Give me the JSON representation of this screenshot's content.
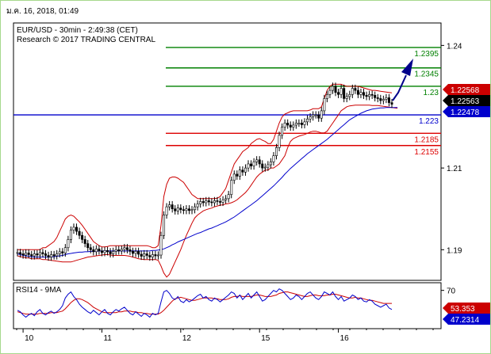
{
  "header": {
    "timestamp": "ม.ค. 16, 2018, 01:49",
    "title": "EUR/USD - 30min - 2:49:38 (CET)",
    "subtitle": "Research © 2017 TRADING CENTRAL"
  },
  "rsi_panel": {
    "title": "RSI14 - 9MA"
  },
  "colors": {
    "frame_outer": "#a6d88c",
    "candles": "#000000",
    "bollinger": "#cc0000",
    "moving_average": "#0000cc",
    "resistance": "#008000",
    "support": "#dd0000",
    "pivot": "#0000cc",
    "arrow": "#00008b"
  },
  "chart_data": [
    {
      "type": "candlestick",
      "instrument": "EUR/USD",
      "timeframe": "30min",
      "x_ticks": [
        "10",
        "11",
        "12",
        "15",
        "16"
      ],
      "y_ticks": [
        1.19,
        1.21,
        1.24
      ],
      "ylim": [
        1.1825,
        1.2455
      ],
      "price_tags": [
        {
          "value": 1.22568,
          "label": "1.22568",
          "color": "#cc0000"
        },
        {
          "value": 1.22563,
          "label": "1.22563",
          "color": "#000000"
        },
        {
          "value": 1.22478,
          "label": "1.22478",
          "color": "#0000cc"
        }
      ],
      "levels": [
        {
          "value": 1.2395,
          "label": "1.2395",
          "kind": "resistance"
        },
        {
          "value": 1.2345,
          "label": "1.2345",
          "kind": "resistance"
        },
        {
          "value": 1.23,
          "label": "1.23",
          "kind": "resistance"
        },
        {
          "value": 1.223,
          "label": "1.223",
          "kind": "pivot"
        },
        {
          "value": 1.2185,
          "label": "1.2185",
          "kind": "support"
        },
        {
          "value": 1.2155,
          "label": "1.2155",
          "kind": "support"
        }
      ],
      "close": [
        1.1893,
        1.189,
        1.1887,
        1.1892,
        1.1888,
        1.1885,
        1.189,
        1.1887,
        1.1893,
        1.189,
        1.1886,
        1.1882,
        1.1888,
        1.1885,
        1.189,
        1.1895,
        1.1892,
        1.1905,
        1.1925,
        1.1948,
        1.1955,
        1.1945,
        1.1935,
        1.1925,
        1.1915,
        1.1905,
        1.19,
        1.1895,
        1.1902,
        1.1897,
        1.1893,
        1.1898,
        1.1895,
        1.189,
        1.1896,
        1.19,
        1.1897,
        1.1901,
        1.1905,
        1.19,
        1.1896,
        1.1891,
        1.1896,
        1.1889,
        1.1884,
        1.189,
        1.1886,
        1.1882,
        1.1888,
        1.1885,
        1.1887,
        1.1935,
        1.1985,
        1.2005,
        1.201,
        1.2,
        1.1995,
        1.2002,
        1.1998,
        1.1996,
        1.2,
        1.1996,
        1.1998,
        1.2005,
        1.2012,
        1.2018,
        1.2015,
        1.202,
        1.2017,
        1.2015,
        1.202,
        1.2018,
        1.2016,
        1.2022,
        1.2025,
        1.2035,
        1.207,
        1.2085,
        1.208,
        1.2095,
        1.209,
        1.21,
        1.211,
        1.2105,
        1.2115,
        1.212,
        1.211,
        1.21,
        1.2102,
        1.2108,
        1.2115,
        1.213,
        1.215,
        1.218,
        1.22,
        1.221,
        1.2205,
        1.22,
        1.2205,
        1.221,
        1.221,
        1.2206,
        1.2213,
        1.222,
        1.2225,
        1.223,
        1.223,
        1.2222,
        1.224,
        1.227,
        1.228,
        1.229,
        1.23,
        1.2285,
        1.228,
        1.2295,
        1.227,
        1.2275,
        1.228,
        1.2295,
        1.229,
        1.228,
        1.2285,
        1.2278,
        1.2275,
        1.228,
        1.2278,
        1.2272,
        1.227,
        1.2265,
        1.2268,
        1.2272,
        1.226,
        1.2256
      ],
      "bollinger_upper": [
        1.19,
        1.19,
        1.19,
        1.19,
        1.19,
        1.19,
        1.19,
        1.19,
        1.19,
        1.1905,
        1.1905,
        1.191,
        1.1915,
        1.192,
        1.193,
        1.1945,
        1.196,
        1.1975,
        1.1982,
        1.1985,
        1.1982,
        1.1975,
        1.1968,
        1.196,
        1.195,
        1.194,
        1.193,
        1.192,
        1.1915,
        1.191,
        1.1907,
        1.1907,
        1.1908,
        1.191,
        1.191,
        1.191,
        1.191,
        1.191,
        1.191,
        1.191,
        1.191,
        1.191,
        1.191,
        1.191,
        1.191,
        1.191,
        1.191,
        1.1908,
        1.1905,
        1.1905,
        1.191,
        1.196,
        1.203,
        1.206,
        1.2075,
        1.2078,
        1.2078,
        1.2075,
        1.207,
        1.2065,
        1.2055,
        1.2045,
        1.2035,
        1.203,
        1.2025,
        1.2025,
        1.2025,
        1.2025,
        1.2025,
        1.2025,
        1.2025,
        1.2026,
        1.203,
        1.204,
        1.205,
        1.207,
        1.209,
        1.211,
        1.212,
        1.213,
        1.214,
        1.2145,
        1.215,
        1.216,
        1.2165,
        1.217,
        1.2172,
        1.2168,
        1.2165,
        1.216,
        1.216,
        1.217,
        1.219,
        1.221,
        1.2225,
        1.2232,
        1.2235,
        1.2238,
        1.224,
        1.224,
        1.224,
        1.224,
        1.224,
        1.224,
        1.2242,
        1.2245,
        1.2245,
        1.2245,
        1.225,
        1.227,
        1.229,
        1.23,
        1.2305,
        1.2305,
        1.2305,
        1.2305,
        1.2302,
        1.23,
        1.23,
        1.23,
        1.23,
        1.23,
        1.2298,
        1.2296,
        1.2294,
        1.2292,
        1.229,
        1.229,
        1.2289,
        1.2288,
        1.2287,
        1.2286,
        1.2285,
        1.2284
      ],
      "bollinger_lower": [
        1.1885,
        1.1883,
        1.1882,
        1.188,
        1.188,
        1.1878,
        1.1878,
        1.1878,
        1.1878,
        1.1876,
        1.1876,
        1.1875,
        1.1874,
        1.1873,
        1.1872,
        1.1871,
        1.187,
        1.187,
        1.187,
        1.187,
        1.1872,
        1.1874,
        1.1876,
        1.1878,
        1.188,
        1.1882,
        1.1883,
        1.1884,
        1.1885,
        1.1886,
        1.1887,
        1.1888,
        1.1888,
        1.1887,
        1.1886,
        1.1886,
        1.1886,
        1.1886,
        1.1886,
        1.1885,
        1.1884,
        1.1882,
        1.188,
        1.1878,
        1.1877,
        1.1876,
        1.1876,
        1.1876,
        1.1876,
        1.1876,
        1.1874,
        1.186,
        1.1843,
        1.1833,
        1.184,
        1.1855,
        1.187,
        1.1885,
        1.19,
        1.1918,
        1.1935,
        1.195,
        1.1965,
        1.1978,
        1.1985,
        1.199,
        1.1995,
        1.1998,
        1.2,
        1.2002,
        1.2005,
        1.2007,
        1.2009,
        1.201,
        1.2012,
        1.2013,
        1.2015,
        1.2018,
        1.2022,
        1.2028,
        1.2034,
        1.204,
        1.2048,
        1.2058,
        1.2068,
        1.2078,
        1.2085,
        1.209,
        1.2095,
        1.2095,
        1.21,
        1.21,
        1.2105,
        1.211,
        1.212,
        1.213,
        1.215,
        1.2165,
        1.2172,
        1.2175,
        1.2178,
        1.218,
        1.2182,
        1.2185,
        1.2188,
        1.219,
        1.219,
        1.2188,
        1.2186,
        1.2186,
        1.219,
        1.22,
        1.221,
        1.222,
        1.223,
        1.224,
        1.2245,
        1.225,
        1.2252,
        1.2253,
        1.2254,
        1.2254,
        1.2254,
        1.2254,
        1.2254,
        1.2254,
        1.2253,
        1.2253,
        1.2253,
        1.2252,
        1.2251,
        1.225,
        1.2249,
        1.2248,
        1.2247,
        1.2246
      ],
      "moving_average": [
        1.189,
        1.1888,
        1.1886,
        1.1885,
        1.1884,
        1.1883,
        1.1882,
        1.1882,
        1.1882,
        1.1882,
        1.1882,
        1.1882,
        1.1882,
        1.1883,
        1.1884,
        1.1885,
        1.1886,
        1.1888,
        1.189,
        1.1891,
        1.1892,
        1.1893,
        1.1894,
        1.1894,
        1.1895,
        1.1895,
        1.1896,
        1.1896,
        1.1896,
        1.1897,
        1.1897,
        1.1897,
        1.1897,
        1.1897,
        1.1897,
        1.1897,
        1.1897,
        1.1897,
        1.1897,
        1.1897,
        1.1897,
        1.1897,
        1.1897,
        1.1897,
        1.1897,
        1.1897,
        1.1897,
        1.1897,
        1.1898,
        1.1898,
        1.1899,
        1.19,
        1.1902,
        1.1905,
        1.1908,
        1.1912,
        1.1915,
        1.1919,
        1.1922,
        1.1925,
        1.1928,
        1.1931,
        1.1934,
        1.1937,
        1.194,
        1.1942,
        1.1945,
        1.1948,
        1.1951,
        1.1953,
        1.1956,
        1.1959,
        1.1962,
        1.1965,
        1.1968,
        1.1972,
        1.1976,
        1.198,
        1.1985,
        1.199,
        1.1995,
        1.2,
        1.2005,
        1.201,
        1.2015,
        1.202,
        1.2026,
        1.2032,
        1.2038,
        1.2044,
        1.205,
        1.2056,
        1.2063,
        1.207,
        1.2077,
        1.2085,
        1.2092,
        1.2099,
        1.2105,
        1.2111,
        1.2117,
        1.2123,
        1.2129,
        1.2135,
        1.214,
        1.2145,
        1.215,
        1.2155,
        1.216,
        1.2165,
        1.217,
        1.2176,
        1.2182,
        1.2188,
        1.2194,
        1.22,
        1.2206,
        1.2212,
        1.2218,
        1.2222,
        1.2226,
        1.223,
        1.2234,
        1.2237,
        1.224,
        1.2242,
        1.2244,
        1.2245,
        1.2246,
        1.2247,
        1.2247,
        1.2248,
        1.2248,
        1.2248,
        1.2248,
        1.2248
      ]
    },
    {
      "type": "line",
      "name": "RSI14 - 9MA",
      "y_ticks": [
        70
      ],
      "ylim": [
        20,
        80
      ],
      "value_tags": [
        {
          "value": 53.353,
          "label": "53.353",
          "color": "#cc0000"
        },
        {
          "value": 47.2314,
          "label": "47.2314",
          "color": "#0000cc"
        }
      ],
      "rsi": [
        44,
        42,
        38,
        35,
        38,
        40,
        37,
        42,
        45,
        40,
        38,
        41,
        43,
        40,
        42,
        45,
        50,
        60,
        65,
        68,
        62,
        58,
        52,
        48,
        45,
        42,
        40,
        44,
        41,
        38,
        42,
        45,
        40,
        38,
        42,
        45,
        43,
        46,
        48,
        44,
        40,
        38,
        42,
        39,
        36,
        40,
        38,
        35,
        40,
        38,
        40,
        55,
        68,
        70,
        66,
        60,
        58,
        62,
        56,
        54,
        58,
        55,
        57,
        60,
        63,
        65,
        60,
        62,
        58,
        56,
        60,
        58,
        55,
        58,
        61,
        64,
        68,
        66,
        60,
        64,
        58,
        62,
        66,
        60,
        64,
        68,
        62,
        56,
        58,
        62,
        66,
        70,
        68,
        72,
        70,
        66,
        62,
        58,
        60,
        64,
        62,
        58,
        62,
        66,
        68,
        64,
        60,
        58,
        62,
        68,
        66,
        64,
        68,
        62,
        58,
        62,
        56,
        58,
        60,
        64,
        62,
        58,
        60,
        56,
        55,
        58,
        56,
        52,
        50,
        48,
        50,
        52,
        47,
        45
      ],
      "ma": [
        42,
        41,
        40,
        39,
        39,
        39,
        39,
        39,
        40,
        40,
        40,
        40,
        41,
        41,
        41,
        42,
        43,
        46,
        50,
        54,
        57,
        59,
        59,
        58,
        56,
        54,
        51,
        48,
        46,
        44,
        42,
        41,
        41,
        41,
        41,
        41,
        42,
        42,
        43,
        43,
        43,
        42,
        42,
        41,
        41,
        40,
        40,
        39,
        39,
        39,
        39,
        41,
        44,
        48,
        52,
        56,
        59,
        60,
        61,
        60,
        59,
        58,
        57,
        57,
        58,
        59,
        60,
        60,
        60,
        60,
        59,
        59,
        58,
        58,
        58,
        59,
        61,
        62,
        62,
        63,
        62,
        62,
        62,
        62,
        63,
        64,
        64,
        63,
        62,
        62,
        62,
        63,
        64,
        66,
        67,
        68,
        68,
        67,
        66,
        65,
        64,
        63,
        62,
        62,
        63,
        64,
        64,
        63,
        63,
        63,
        64,
        64,
        65,
        65,
        64,
        63,
        62,
        61,
        60,
        60,
        61,
        60,
        60,
        59,
        58,
        57,
        57,
        56,
        55,
        54,
        53,
        53,
        53,
        53
      ]
    }
  ]
}
